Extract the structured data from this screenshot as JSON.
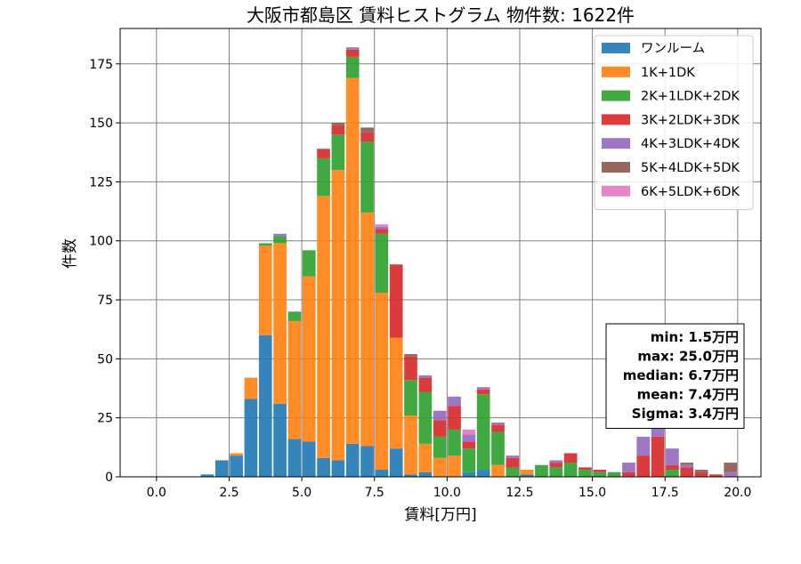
{
  "chart_data": {
    "type": "bar",
    "stacked": true,
    "title": "大阪市都島区 賃料ヒストグラム  物件数: 1622件",
    "xlabel": "賃料[万円]",
    "ylabel": "件数",
    "xlim": [
      -1.25,
      20.8
    ],
    "ylim": [
      0,
      190
    ],
    "xticks": [
      0.0,
      2.5,
      5.0,
      7.5,
      10.0,
      12.5,
      15.0,
      17.5,
      20.0
    ],
    "xtick_labels": [
      "0.0",
      "2.5",
      "5.0",
      "7.5",
      "10.0",
      "12.5",
      "15.0",
      "17.5",
      "20.0"
    ],
    "yticks": [
      0,
      25,
      50,
      75,
      100,
      125,
      150,
      175
    ],
    "ytick_labels": [
      "0",
      "25",
      "50",
      "75",
      "100",
      "125",
      "150",
      "175"
    ],
    "grid": true,
    "legend_position": "top-right",
    "bin_width": 0.5,
    "bin_starts": [
      1.5,
      2.0,
      2.5,
      3.0,
      3.5,
      4.0,
      4.5,
      5.0,
      5.5,
      6.0,
      6.5,
      7.0,
      7.5,
      8.0,
      8.5,
      9.0,
      9.5,
      10.0,
      10.5,
      11.0,
      11.5,
      12.0,
      12.5,
      13.0,
      13.5,
      14.0,
      14.5,
      15.0,
      15.5,
      16.0,
      16.5,
      17.0,
      17.5,
      18.0,
      18.5,
      19.0,
      19.5
    ],
    "series": [
      {
        "name": "ワンルーム",
        "color": "#1f77b4",
        "values": [
          1,
          7,
          9,
          33,
          60,
          31,
          16,
          15,
          8,
          7,
          14,
          13,
          3,
          12,
          1,
          2,
          0,
          0,
          2,
          3,
          0,
          0,
          1,
          0,
          0,
          0,
          0,
          0,
          0,
          0,
          0,
          0,
          0,
          0,
          0,
          0,
          0
        ]
      },
      {
        "name": "1K+1DK",
        "color": "#ff7f0e",
        "values": [
          0,
          0,
          1,
          9,
          38,
          68,
          50,
          70,
          111,
          123,
          155,
          99,
          75,
          47,
          25,
          12,
          8,
          9,
          0,
          0,
          5,
          0,
          2,
          0,
          0,
          0,
          0,
          0,
          0,
          0,
          0,
          0,
          0,
          0,
          0,
          0,
          0
        ]
      },
      {
        "name": "2K+1LDK+2DK",
        "color": "#2ca02c",
        "values": [
          0,
          0,
          0,
          0,
          1,
          3,
          4,
          11,
          16,
          15,
          9,
          30,
          25,
          0,
          15,
          22,
          9,
          11,
          10,
          32,
          14,
          4,
          0,
          5,
          4,
          6,
          3,
          2,
          2,
          0,
          0,
          0,
          3,
          0,
          0,
          0,
          0
        ]
      },
      {
        "name": "3K+2LDK+3DK",
        "color": "#d62728",
        "values": [
          0,
          0,
          0,
          0,
          0,
          0,
          0,
          0,
          4,
          4,
          3,
          4,
          2,
          31,
          10,
          6,
          7,
          10,
          3,
          2,
          3,
          4,
          0,
          0,
          2,
          4,
          1,
          1,
          0,
          2,
          9,
          17,
          2,
          4,
          2,
          1,
          0
        ]
      },
      {
        "name": "4K+3LDK+4DK",
        "color": "#9467bd",
        "values": [
          0,
          0,
          0,
          0,
          0,
          1,
          0,
          0,
          0,
          0,
          1,
          0,
          1,
          0,
          0,
          1,
          4,
          4,
          3,
          1,
          1,
          1,
          0,
          0,
          1,
          0,
          0,
          0,
          0,
          4,
          8,
          4,
          7,
          1,
          0,
          0,
          2
        ]
      },
      {
        "name": "5K+4LDK+5DK",
        "color": "#8c564b",
        "values": [
          0,
          0,
          0,
          0,
          0,
          0,
          0,
          0,
          0,
          1,
          0,
          2,
          0,
          0,
          1,
          0,
          0,
          0,
          0,
          0,
          0,
          0,
          0,
          0,
          0,
          0,
          0,
          0,
          0,
          0,
          0,
          0,
          0,
          1,
          1,
          0,
          4
        ]
      },
      {
        "name": "6K+5LDK+6DK",
        "color": "#e377c2",
        "values": [
          0,
          0,
          0,
          0,
          0,
          0,
          0,
          0,
          0,
          0,
          0,
          0,
          1,
          0,
          0,
          0,
          0,
          0,
          2,
          0,
          0,
          0,
          0,
          0,
          0,
          0,
          0,
          0,
          0,
          0,
          0,
          0,
          0,
          0,
          0,
          0,
          0
        ]
      }
    ],
    "stats_box": {
      "lines": [
        "min: 1.5万円",
        "max: 25.0万円",
        "median: 6.7万円",
        "mean: 7.4万円",
        "Sigma: 3.4万円"
      ]
    }
  }
}
